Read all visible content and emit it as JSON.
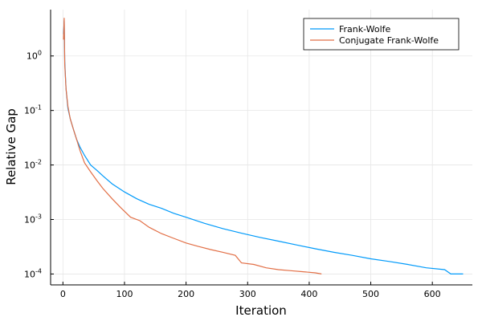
{
  "chart_data": {
    "type": "line",
    "xlabel": "Iteration",
    "ylabel": "Relative Gap",
    "xlim": [
      -20,
      665
    ],
    "ylim_log10": [
      -4.2,
      0.85
    ],
    "yscale": "log",
    "grid": true,
    "legend_position": "top-right",
    "x_ticks": [
      0,
      100,
      200,
      300,
      400,
      500,
      600
    ],
    "x_tick_labels": [
      "0",
      "100",
      "200",
      "300",
      "400",
      "500",
      "600"
    ],
    "y_ticks": [
      0.0001,
      0.001,
      0.01,
      0.1,
      1
    ],
    "y_tick_bases": [
      "10",
      "10",
      "10",
      "10",
      "10"
    ],
    "y_tick_exps": [
      "-4",
      "-3",
      "-2",
      "-1",
      "0"
    ],
    "series": [
      {
        "name": "Frank-Wolfe",
        "color": "#009afa",
        "x": [
          1,
          2,
          3,
          5,
          8,
          12,
          17,
          22,
          28,
          35,
          45,
          55,
          65,
          80,
          100,
          120,
          140,
          160,
          180,
          200,
          230,
          260,
          290,
          320,
          350,
          380,
          410,
          440,
          470,
          500,
          530,
          560,
          590,
          620,
          630,
          640,
          650
        ],
        "y": [
          2.5,
          4.5,
          0.8,
          0.25,
          0.11,
          0.07,
          0.045,
          0.03,
          0.021,
          0.015,
          0.01,
          0.008,
          0.0063,
          0.0045,
          0.0032,
          0.0024,
          0.0019,
          0.0016,
          0.0013,
          0.0011,
          0.00085,
          0.00068,
          0.00056,
          0.00047,
          0.0004,
          0.00034,
          0.00029,
          0.00025,
          0.00022,
          0.00019,
          0.00017,
          0.00015,
          0.00013,
          0.00012,
          0.0001,
          0.0001,
          0.0001
        ]
      },
      {
        "name": "Conjugate Frank-Wolfe",
        "color": "#e26f46",
        "x": [
          1,
          2,
          3,
          5,
          8,
          12,
          17,
          22,
          28,
          35,
          45,
          55,
          65,
          80,
          95,
          110,
          125,
          140,
          160,
          180,
          200,
          220,
          240,
          260,
          280,
          290,
          310,
          330,
          350,
          370,
          390,
          410,
          420
        ],
        "y": [
          2,
          5,
          0.7,
          0.25,
          0.12,
          0.07,
          0.045,
          0.03,
          0.018,
          0.011,
          0.0075,
          0.0052,
          0.0037,
          0.0024,
          0.0016,
          0.0011,
          0.00095,
          0.00072,
          0.00055,
          0.00045,
          0.00037,
          0.00032,
          0.00028,
          0.00025,
          0.00022,
          0.00016,
          0.00015,
          0.00013,
          0.00012,
          0.000115,
          0.00011,
          0.000105,
          0.0001
        ]
      }
    ]
  }
}
